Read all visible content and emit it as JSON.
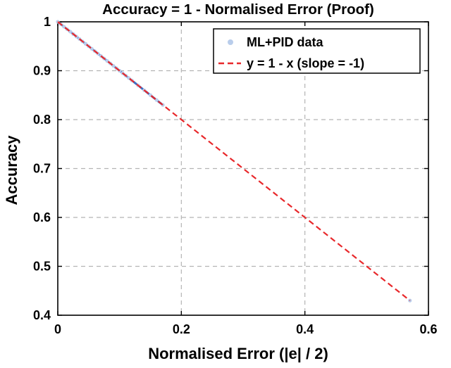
{
  "chart_data": {
    "type": "scatter",
    "title": "Accuracy = 1 - Normalised Error  (Proof)",
    "xlabel": "Normalised Error  (|e| / 2)",
    "ylabel": "Accuracy",
    "xlim": [
      0,
      0.6
    ],
    "ylim": [
      0.4,
      1
    ],
    "xticks": [
      0,
      0.2,
      0.4,
      0.6
    ],
    "xtick_labels": [
      "0",
      "0.2",
      "0.4",
      "0.6"
    ],
    "yticks": [
      0.4,
      0.5,
      0.6,
      0.7,
      0.8,
      0.9,
      1
    ],
    "ytick_labels": [
      "0.4",
      "0.5",
      "0.6",
      "0.7",
      "0.8",
      "0.9",
      "1"
    ],
    "grid": true,
    "grid_style": "dashed",
    "legend_position": "top-right",
    "series": [
      {
        "name": "ML+PID data",
        "kind": "scatter",
        "color": "#b9cdeb",
        "x": [
          0,
          0.005,
          0.01,
          0.015,
          0.02,
          0.025,
          0.03,
          0.035,
          0.04,
          0.045,
          0.05,
          0.055,
          0.06,
          0.065,
          0.07,
          0.075,
          0.08,
          0.085,
          0.09,
          0.095,
          0.1,
          0.105,
          0.11,
          0.115,
          0.12,
          0.13,
          0.14,
          0.15,
          0.16,
          0.17,
          0.57
        ],
        "y": [
          1,
          0.995,
          0.99,
          0.985,
          0.98,
          0.975,
          0.97,
          0.965,
          0.96,
          0.955,
          0.95,
          0.945,
          0.94,
          0.935,
          0.93,
          0.925,
          0.92,
          0.915,
          0.91,
          0.905,
          0.9,
          0.895,
          0.89,
          0.885,
          0.88,
          0.87,
          0.86,
          0.85,
          0.84,
          0.83,
          0.43
        ]
      },
      {
        "name": "y = 1 - x  (slope = -1)",
        "kind": "line",
        "style": "dashed",
        "color": "#e8282b",
        "x": [
          0,
          0.57
        ],
        "y": [
          1,
          0.43
        ]
      }
    ]
  },
  "colors": {
    "grid": "#b4b4b4",
    "axes": "#000000",
    "dense_overlay": "#3d6fc4"
  }
}
